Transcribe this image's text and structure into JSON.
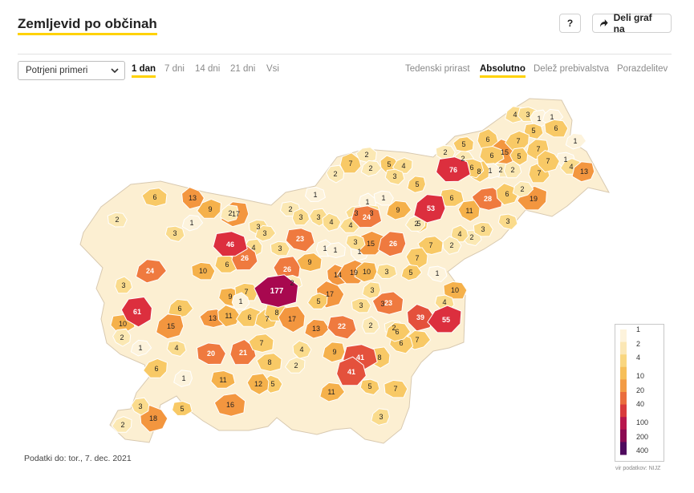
{
  "header": {
    "title": "Zemljevid po občinah",
    "help_label": "?",
    "share_label": "Deli graf na"
  },
  "controls": {
    "select_value": "Potrjeni primeri",
    "time_tabs": [
      {
        "label": "1 dan",
        "active": true
      },
      {
        "label": "7 dni",
        "active": false
      },
      {
        "label": "14 dni",
        "active": false
      },
      {
        "label": "21 dni",
        "active": false
      },
      {
        "label": "Vsi",
        "active": false
      }
    ],
    "view_tabs": [
      {
        "label": "Tedenski prirast",
        "active": false
      },
      {
        "label": "Absolutno",
        "active": true
      },
      {
        "label": "Delež prebivalstva",
        "active": false
      },
      {
        "label": "Porazdelitev",
        "active": false
      }
    ]
  },
  "legend": {
    "ticks": [
      "1",
      "2",
      "4",
      "10",
      "20",
      "40",
      "100",
      "200",
      "400"
    ],
    "colors": [
      "#fdf3dc",
      "#fbe7b5",
      "#f9d67f",
      "#f6bf59",
      "#f29b45",
      "#ea6d3d",
      "#d93b3c",
      "#b8174d",
      "#8b0a52",
      "#4f0a5e"
    ]
  },
  "footer": {
    "data_date": "Podatki do: tor., 7. dec. 2021",
    "source": "vir podatkov: NIJZ"
  },
  "chart_data": {
    "type": "choropleth",
    "title": "Zemljevid po občinah",
    "metric": "Potrjeni primeri",
    "period": "1 dan",
    "mode": "Absolutno",
    "region_values": [
      4,
      3,
      1,
      1,
      5,
      6,
      6,
      5,
      15,
      7,
      7,
      6,
      5,
      1,
      1,
      2,
      7,
      1,
      7,
      4,
      13,
      76,
      8,
      2,
      6,
      2,
      2,
      28,
      6,
      19,
      53,
      6,
      11,
      2,
      3,
      2,
      7,
      2,
      5,
      4,
      5,
      1,
      2,
      2,
      3,
      1,
      1,
      6,
      13,
      9,
      17,
      2,
      3,
      1,
      3,
      3,
      3,
      3,
      4,
      4,
      3,
      24,
      5,
      9,
      2,
      3,
      4,
      7,
      2,
      2,
      2,
      46,
      4,
      3,
      23,
      3,
      1,
      1,
      1,
      15,
      26,
      6,
      26,
      24,
      3,
      10,
      26,
      9,
      14,
      19,
      10,
      3,
      7,
      5,
      1,
      10,
      3,
      177,
      17,
      5,
      3,
      2,
      61,
      6,
      9,
      7,
      1,
      13,
      11,
      6,
      7,
      8,
      17,
      13,
      22,
      3,
      3,
      23,
      39,
      55,
      15,
      10,
      2,
      1,
      4,
      20,
      21,
      7,
      4,
      2,
      9,
      41,
      8,
      7,
      6,
      2,
      2,
      8,
      5,
      6,
      1,
      11,
      12,
      11,
      5,
      7,
      41,
      16,
      18,
      2,
      3,
      5,
      3,
      6,
      4
    ]
  }
}
